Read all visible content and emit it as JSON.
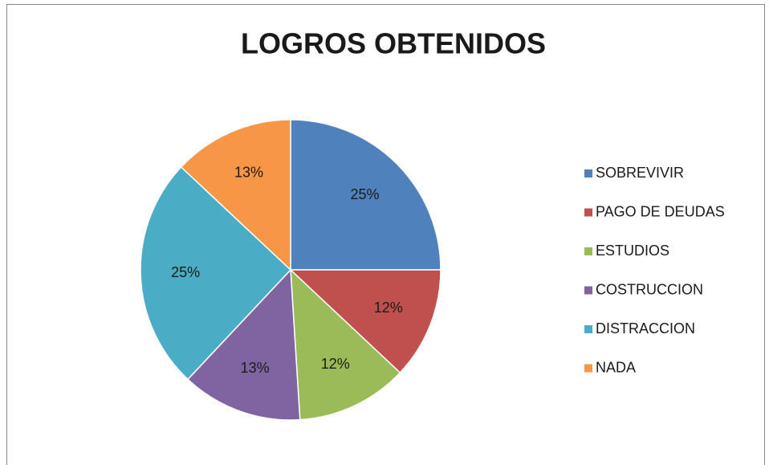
{
  "chart_data": {
    "type": "pie",
    "title": "LOGROS OBTENIDOS",
    "categories": [
      "SOBREVIVIR",
      "PAGO DE DEUDAS",
      "ESTUDIOS",
      "COSTRUCCION",
      "DISTRACCION",
      "NADA"
    ],
    "values": [
      25,
      12,
      12,
      13,
      25,
      13
    ],
    "value_labels": [
      "25%",
      "12%",
      "12%",
      "13%",
      "25%",
      "13%"
    ],
    "colors": [
      "#4f81bd",
      "#c0504d",
      "#9bbb59",
      "#8064a2",
      "#4bacc6",
      "#f79646"
    ],
    "legend": "right"
  }
}
